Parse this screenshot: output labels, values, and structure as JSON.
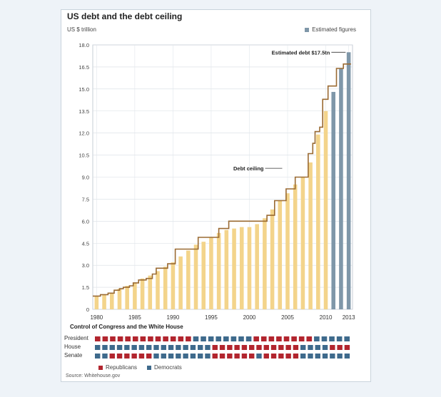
{
  "chart_data": {
    "type": "bar",
    "title": "US debt and the debt ceiling",
    "ylabel": "US $ trillion",
    "ylim": [
      0,
      18
    ],
    "yticks": [
      "0",
      "1.5",
      "3.0",
      "4.5",
      "6.0",
      "7.5",
      "9.0",
      "10.5",
      "12.0",
      "13.5",
      "15.0",
      "16.5",
      "18.0"
    ],
    "xtick_labels": [
      {
        "year": 1980,
        "label": "1980"
      },
      {
        "year": 1985,
        "label": "1985"
      },
      {
        "year": 1990,
        "label": "1990"
      },
      {
        "year": 1995,
        "label": "1995"
      },
      {
        "year": 2000,
        "label": "2000"
      },
      {
        "year": 2005,
        "label": "2005"
      },
      {
        "year": 2010,
        "label": "2010"
      },
      {
        "year": 2013,
        "label": "2013"
      }
    ],
    "series": [
      {
        "name": "Debt",
        "years": [
          1980,
          1981,
          1982,
          1983,
          1984,
          1985,
          1986,
          1987,
          1988,
          1989,
          1990,
          1991,
          1992,
          1993,
          1994,
          1995,
          1996,
          1997,
          1998,
          1999,
          2000,
          2001,
          2002,
          2003,
          2004,
          2005,
          2006,
          2007,
          2008,
          2009,
          2010
        ],
        "values": [
          0.9,
          1.0,
          1.1,
          1.4,
          1.6,
          1.8,
          2.1,
          2.3,
          2.6,
          2.9,
          3.2,
          3.6,
          4.0,
          4.4,
          4.6,
          4.9,
          5.2,
          5.4,
          5.5,
          5.6,
          5.6,
          5.8,
          6.2,
          6.8,
          7.4,
          7.9,
          8.5,
          9.0,
          10.0,
          11.9,
          13.5
        ]
      },
      {
        "name": "Estimated figures",
        "years": [
          2011,
          2012,
          2013
        ],
        "values": [
          14.8,
          16.4,
          17.5
        ]
      }
    ],
    "debt_ceiling": {
      "label": "Debt ceiling",
      "points": [
        [
          1979.5,
          0.9
        ],
        [
          1980.5,
          0.9
        ],
        [
          1980.5,
          1.0
        ],
        [
          1981.5,
          1.0
        ],
        [
          1981.5,
          1.1
        ],
        [
          1982.3,
          1.1
        ],
        [
          1982.3,
          1.3
        ],
        [
          1983.0,
          1.3
        ],
        [
          1983.0,
          1.4
        ],
        [
          1983.5,
          1.4
        ],
        [
          1983.5,
          1.5
        ],
        [
          1984.3,
          1.5
        ],
        [
          1984.3,
          1.6
        ],
        [
          1984.8,
          1.6
        ],
        [
          1984.8,
          1.8
        ],
        [
          1985.5,
          1.8
        ],
        [
          1985.5,
          2.0
        ],
        [
          1986.5,
          2.0
        ],
        [
          1986.5,
          2.1
        ],
        [
          1987.3,
          2.1
        ],
        [
          1987.3,
          2.4
        ],
        [
          1987.8,
          2.4
        ],
        [
          1987.8,
          2.8
        ],
        [
          1989.3,
          2.8
        ],
        [
          1989.3,
          3.1
        ],
        [
          1990.3,
          3.1
        ],
        [
          1990.3,
          4.1
        ],
        [
          1993.3,
          4.1
        ],
        [
          1993.3,
          4.9
        ],
        [
          1996.0,
          4.9
        ],
        [
          1996.0,
          5.5
        ],
        [
          1997.3,
          5.5
        ],
        [
          1997.3,
          6.0
        ],
        [
          2002.3,
          6.0
        ],
        [
          2002.3,
          6.4
        ],
        [
          2003.3,
          6.4
        ],
        [
          2003.3,
          7.4
        ],
        [
          2004.8,
          7.4
        ],
        [
          2004.8,
          8.2
        ],
        [
          2006.0,
          8.2
        ],
        [
          2006.0,
          9.0
        ],
        [
          2007.7,
          9.0
        ],
        [
          2007.7,
          10.6
        ],
        [
          2008.3,
          10.6
        ],
        [
          2008.3,
          11.3
        ],
        [
          2008.6,
          11.3
        ],
        [
          2008.6,
          12.1
        ],
        [
          2009.2,
          12.1
        ],
        [
          2009.2,
          12.4
        ],
        [
          2009.6,
          12.4
        ],
        [
          2009.6,
          14.3
        ],
        [
          2010.3,
          14.3
        ],
        [
          2010.3,
          15.2
        ],
        [
          2011.0,
          15.2
        ],
        [
          2011.0,
          15.2
        ],
        [
          2011.4,
          15.2
        ],
        [
          2011.4,
          16.4
        ],
        [
          2012.3,
          16.4
        ],
        [
          2012.3,
          16.7
        ],
        [
          2013.3,
          16.7
        ]
      ]
    },
    "annotation": "Estimated debt $17.5tn",
    "grid": true
  },
  "colors": {
    "debt_bar": "#f3d48b",
    "estimated_bar": "#7f97a9",
    "ceiling_line": "#9a6a32",
    "republican": "#b2252e",
    "democrat": "#3e6a8c"
  },
  "control": {
    "title": "Control of Congress and the White House",
    "rows": [
      {
        "label": "President",
        "parties": "RRRRRRRRRRRRRDDDDDDDDRRRRRRRRDDDDD"
      },
      {
        "label": "House",
        "parties": "DDDDDDDDDDDDDDDDRRRRRRRRRRRRDDDDRRR"
      },
      {
        "label": "Senate",
        "parties": "DDRRRRRRDDDDDDDDRRRRRRDRRRRRDDDDDDD"
      }
    ],
    "legend": {
      "republicans": "Republicans",
      "democrats": "Democrats"
    }
  },
  "legend_estimated": "Estimated figures",
  "source": "Source: Whitehouse.gov"
}
